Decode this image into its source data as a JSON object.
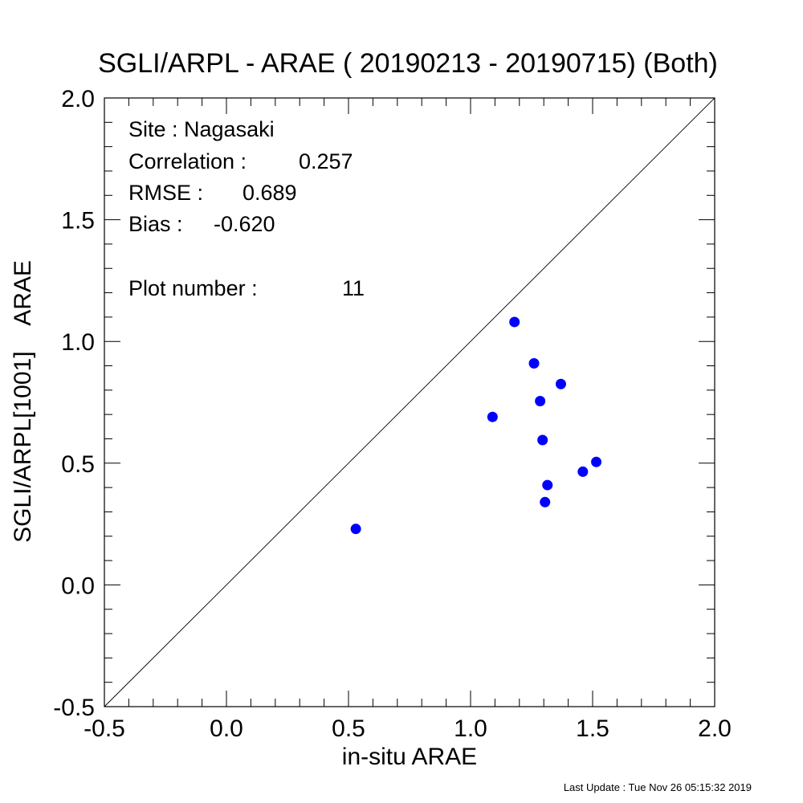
{
  "chart_data": {
    "type": "scatter",
    "title": "SGLI/ARPL - ARAE ( 20190213 - 20190715) (Both)",
    "xlabel": "in-situ ARAE",
    "ylabel": "SGLI/ARPL[1001]    ARAE",
    "xlim": [
      -0.5,
      2.0
    ],
    "ylim": [
      -0.5,
      2.0
    ],
    "xticks": [
      "-0.5",
      "0.0",
      "0.5",
      "1.0",
      "1.5",
      "2.0"
    ],
    "yticks": [
      "-0.5",
      "0.0",
      "0.5",
      "1.0",
      "1.5",
      "2.0"
    ],
    "minor_tick_step": 0.1,
    "reference_line": "1:1",
    "grid": false,
    "marker_color": "#0000ff",
    "points": [
      {
        "x": 0.53,
        "y": 0.23
      },
      {
        "x": 1.09,
        "y": 0.69
      },
      {
        "x": 1.18,
        "y": 1.08
      },
      {
        "x": 1.26,
        "y": 0.91
      },
      {
        "x": 1.285,
        "y": 0.755
      },
      {
        "x": 1.295,
        "y": 0.595
      },
      {
        "x": 1.305,
        "y": 0.34
      },
      {
        "x": 1.315,
        "y": 0.41
      },
      {
        "x": 1.37,
        "y": 0.825
      },
      {
        "x": 1.46,
        "y": 0.465
      },
      {
        "x": 1.515,
        "y": 0.505
      }
    ]
  },
  "stats": {
    "site": "Site : Nagasaki",
    "correlation_label": "Correlation :",
    "correlation_value": "0.257",
    "rmse_label": "RMSE :",
    "rmse_value": "0.689",
    "bias_label": "Bias :",
    "bias_value": "-0.620",
    "plot_number_label": "Plot number :",
    "plot_number_value": "11"
  },
  "footer": "Last Update : Tue Nov 26 05:15:32 2019"
}
